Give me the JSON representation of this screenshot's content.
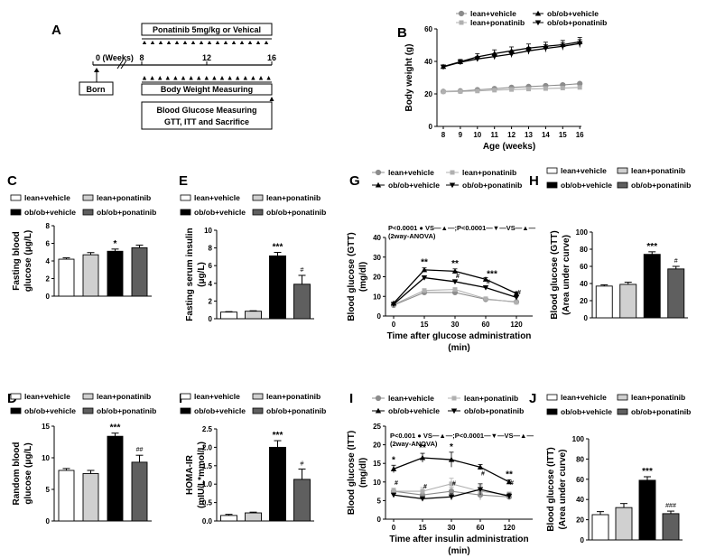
{
  "groups": [
    "lean+vehicle",
    "lean+ponatinib",
    "ob/ob+vehicle",
    "ob/ob+ponatinib"
  ],
  "colors": {
    "lean_vehicle": "#ffffff",
    "lean_ponatinib": "#d0d0d0",
    "obob_vehicle": "#000000",
    "obob_ponatinib": "#5f5f5f",
    "lean_line": "#8c8c8c",
    "lean_pon_line": "#b0b0b0"
  },
  "panelA": {
    "label": "A",
    "treatment": "Ponatinib 5mg/kg or Vehical",
    "weeks_label": "0 (Weeks)",
    "ticks": [
      "8",
      "12",
      "16"
    ],
    "born": "Born",
    "bw": "Body Weight Measuring",
    "bg_line1": "Blood Glucose Measuring",
    "bg_line2": "GTT, ITT and Sacrifice"
  },
  "chart_data": [
    {
      "panel": "B",
      "type": "line",
      "xlabel": "Age (weeks)",
      "ylabel": "Body weight (g)",
      "x": [
        8,
        9,
        10,
        11,
        12,
        13,
        14,
        15,
        16
      ],
      "ylim": [
        0,
        60
      ],
      "yticks": [
        0,
        20,
        40,
        60
      ],
      "legend": [
        "lean+vehicle",
        "lean+ponatinib",
        "ob/ob+vehicle",
        "ob/ob+ponatinib"
      ],
      "series": [
        {
          "name": "lean+vehicle",
          "values": [
            21.5,
            21.8,
            22.5,
            23.2,
            24.0,
            24.5,
            25.0,
            25.5,
            26.3
          ],
          "err": [
            0.7,
            0.7,
            0.7,
            0.8,
            0.8,
            0.8,
            0.8,
            0.9,
            0.9
          ]
        },
        {
          "name": "lean+ponatinib",
          "values": [
            21.3,
            21.5,
            21.8,
            22.3,
            22.7,
            23.0,
            23.3,
            23.6,
            24.0
          ],
          "err": [
            0.6,
            0.6,
            0.6,
            0.6,
            0.7,
            0.7,
            0.7,
            0.7,
            0.7
          ]
        },
        {
          "name": "ob/ob+vehicle",
          "values": [
            36.8,
            39.8,
            42.8,
            44.8,
            46.5,
            48.2,
            49.3,
            50.3,
            52.0
          ],
          "err": [
            1.0,
            1.4,
            2.0,
            2.3,
            2.4,
            2.5,
            2.5,
            2.6,
            2.7
          ]
        },
        {
          "name": "ob/ob+ponatinib",
          "values": [
            36.6,
            39.5,
            41.5,
            43.0,
            44.5,
            46.5,
            48.0,
            49.3,
            51.0
          ],
          "err": [
            1.0,
            1.2,
            1.5,
            1.8,
            2.0,
            2.1,
            2.2,
            2.3,
            2.4
          ]
        }
      ]
    },
    {
      "panel": "C",
      "type": "bar",
      "ylabel": "Fasting blood glucose (μg/L)",
      "ylim": [
        0,
        8
      ],
      "yticks": [
        0,
        2,
        4,
        6,
        8
      ],
      "categories": [
        "lean+vehicle",
        "lean+ponatinib",
        "ob/ob+vehicle",
        "ob/ob+ponatinib"
      ],
      "values": [
        4.2,
        4.7,
        5.1,
        5.5
      ],
      "err": [
        0.15,
        0.25,
        0.25,
        0.3
      ],
      "annotations": [
        "",
        "",
        "*",
        ""
      ]
    },
    {
      "panel": "E",
      "type": "bar",
      "ylabel": "Fasting serum insulin (μg/L)",
      "ylim": [
        0,
        10
      ],
      "yticks": [
        0,
        2,
        4,
        6,
        8,
        10
      ],
      "categories": [
        "lean+vehicle",
        "lean+ponatinib",
        "ob/ob+vehicle",
        "ob/ob+ponatinib"
      ],
      "values": [
        0.75,
        0.85,
        7.1,
        3.9
      ],
      "err": [
        0.05,
        0.05,
        0.4,
        1.0
      ],
      "annotations": [
        "",
        "",
        "***",
        "#"
      ]
    },
    {
      "panel": "G",
      "type": "line",
      "xlabel": "Time after glucose administration (min)",
      "ylabel": "Blood glucose (GTT) (mg/dl)",
      "x": [
        0,
        15,
        30,
        60,
        120
      ],
      "ylim": [
        0,
        40
      ],
      "yticks": [
        0,
        10,
        20,
        30,
        40
      ],
      "stats": "P<0.0001 ● VS—▲—; P<0.0001—▼—VS—▲— (2way-ANOVA)",
      "legend": [
        "lean+vehicle",
        "lean+ponatinib",
        "ob/ob+vehicle",
        "ob/ob+ponatinib"
      ],
      "series": [
        {
          "name": "lean+vehicle",
          "values": [
            5.5,
            12.0,
            12.0,
            8.5,
            7.2
          ],
          "err": [
            0.4,
            0.8,
            0.8,
            0.5,
            0.4
          ]
        },
        {
          "name": "lean+ponatinib",
          "values": [
            5.8,
            13.0,
            13.5,
            8.8,
            7.0
          ],
          "err": [
            0.4,
            0.8,
            0.8,
            0.5,
            0.4
          ]
        },
        {
          "name": "ob/ob+vehicle",
          "values": [
            6.5,
            23.5,
            22.8,
            18.7,
            11.5
          ],
          "err": [
            0.5,
            1.0,
            1.2,
            0.8,
            0.8
          ]
        },
        {
          "name": "ob/ob+ponatinib",
          "values": [
            6.0,
            19.5,
            17.5,
            14.5,
            9.5
          ],
          "err": [
            0.5,
            1.0,
            1.0,
            0.8,
            0.7
          ]
        }
      ],
      "annotations": [
        {
          "x": 15,
          "text": "**"
        },
        {
          "x": 30,
          "text": "**"
        },
        {
          "x": 60,
          "text": "***"
        },
        {
          "x": 30,
          "text": "#"
        },
        {
          "x": 60,
          "text": "#"
        },
        {
          "x": 120,
          "text": "#"
        }
      ]
    },
    {
      "panel": "H",
      "type": "bar",
      "ylabel": "Blood glucose (GTT) (Area under curve)",
      "ylim": [
        0,
        100
      ],
      "yticks": [
        0,
        20,
        40,
        60,
        80,
        100
      ],
      "categories": [
        "lean+vehicle",
        "lean+ponatinib",
        "ob/ob+vehicle",
        "ob/ob+ponatinib"
      ],
      "values": [
        37,
        39,
        74,
        57
      ],
      "err": [
        1.5,
        2.5,
        3.0,
        3.0
      ],
      "annotations": [
        "",
        "",
        "***",
        "#"
      ]
    },
    {
      "panel": "D",
      "type": "bar",
      "ylabel": "Random blood glucose (μg/L)",
      "ylim": [
        0,
        15
      ],
      "yticks": [
        0,
        5,
        10,
        15
      ],
      "categories": [
        "lean+vehicle",
        "lean+ponatinib",
        "ob/ob+vehicle",
        "ob/ob+ponatinib"
      ],
      "values": [
        8.0,
        7.5,
        13.4,
        9.3
      ],
      "err": [
        0.3,
        0.5,
        0.5,
        1.1
      ],
      "annotations": [
        "",
        "",
        "***",
        "##"
      ]
    },
    {
      "panel": "F",
      "type": "bar",
      "ylabel": "HOMA-IR (mIU/L*mmol/L)",
      "ylim": [
        0,
        2.5
      ],
      "yticks": [
        0.0,
        0.5,
        1.0,
        1.5,
        2.0,
        2.5
      ],
      "categories": [
        "lean+vehicle",
        "lean+ponatinib",
        "ob/ob+vehicle",
        "ob/ob+ponatinib"
      ],
      "values": [
        0.15,
        0.22,
        2.0,
        1.13
      ],
      "err": [
        0.03,
        0.02,
        0.18,
        0.28
      ],
      "annotations": [
        "",
        "",
        "***",
        "#"
      ]
    },
    {
      "panel": "I",
      "type": "line",
      "xlabel": "Time after insulin administration (min)",
      "ylabel": "Blood glucose (ITT) (mg/dl)",
      "x": [
        0,
        15,
        30,
        60,
        120
      ],
      "ylim": [
        0,
        25
      ],
      "yticks": [
        0,
        5,
        10,
        15,
        20,
        25
      ],
      "stats": "P<0.001 ● VS—▲—; P<0.0001—▼—VS—▲— (2way-ANOVA)",
      "legend": [
        "lean+vehicle",
        "lean+ponatinib",
        "ob/ob+vehicle",
        "ob/ob+ponatinib"
      ],
      "series": [
        {
          "name": "lean+vehicle",
          "values": [
            7.5,
            6.5,
            7.5,
            6.5,
            6.0
          ],
          "err": [
            0.8,
            0.7,
            1.0,
            1.3,
            0.7
          ]
        },
        {
          "name": "lean+ponatinib",
          "values": [
            7.5,
            7.5,
            9.5,
            7.5,
            6.5
          ],
          "err": [
            0.8,
            1.0,
            1.5,
            1.5,
            0.8
          ]
        },
        {
          "name": "ob/ob+vehicle",
          "values": [
            13.5,
            16.5,
            16.0,
            14.0,
            10.0
          ],
          "err": [
            1.0,
            1.2,
            2.0,
            0.7,
            0.6
          ]
        },
        {
          "name": "ob/ob+ponatinib",
          "values": [
            6.5,
            5.5,
            6.0,
            8.0,
            6.2
          ],
          "err": [
            0.5,
            0.5,
            0.8,
            1.5,
            0.8
          ]
        }
      ],
      "annotations": [
        {
          "x": 0,
          "text": "*"
        },
        {
          "x": 15,
          "text": "**"
        },
        {
          "x": 30,
          "text": "*"
        },
        {
          "x": 120,
          "text": "**"
        },
        {
          "x": 0,
          "text": "#"
        },
        {
          "x": 15,
          "text": "#"
        },
        {
          "x": 30,
          "text": "#"
        },
        {
          "x": 60,
          "text": "#"
        },
        {
          "x": 120,
          "text": "#"
        }
      ]
    },
    {
      "panel": "J",
      "type": "bar",
      "ylabel": "Blood glucose (ITT) (Area under curve)",
      "ylim": [
        0,
        100
      ],
      "yticks": [
        0,
        20,
        40,
        60,
        80,
        100
      ],
      "categories": [
        "lean+vehicle",
        "lean+ponatinib",
        "ob/ob+vehicle",
        "ob/ob+ponatinib"
      ],
      "values": [
        25,
        32,
        59,
        26
      ],
      "err": [
        3.0,
        4.0,
        3.5,
        2.5
      ],
      "annotations": [
        "",
        "",
        "***",
        "###"
      ]
    }
  ]
}
